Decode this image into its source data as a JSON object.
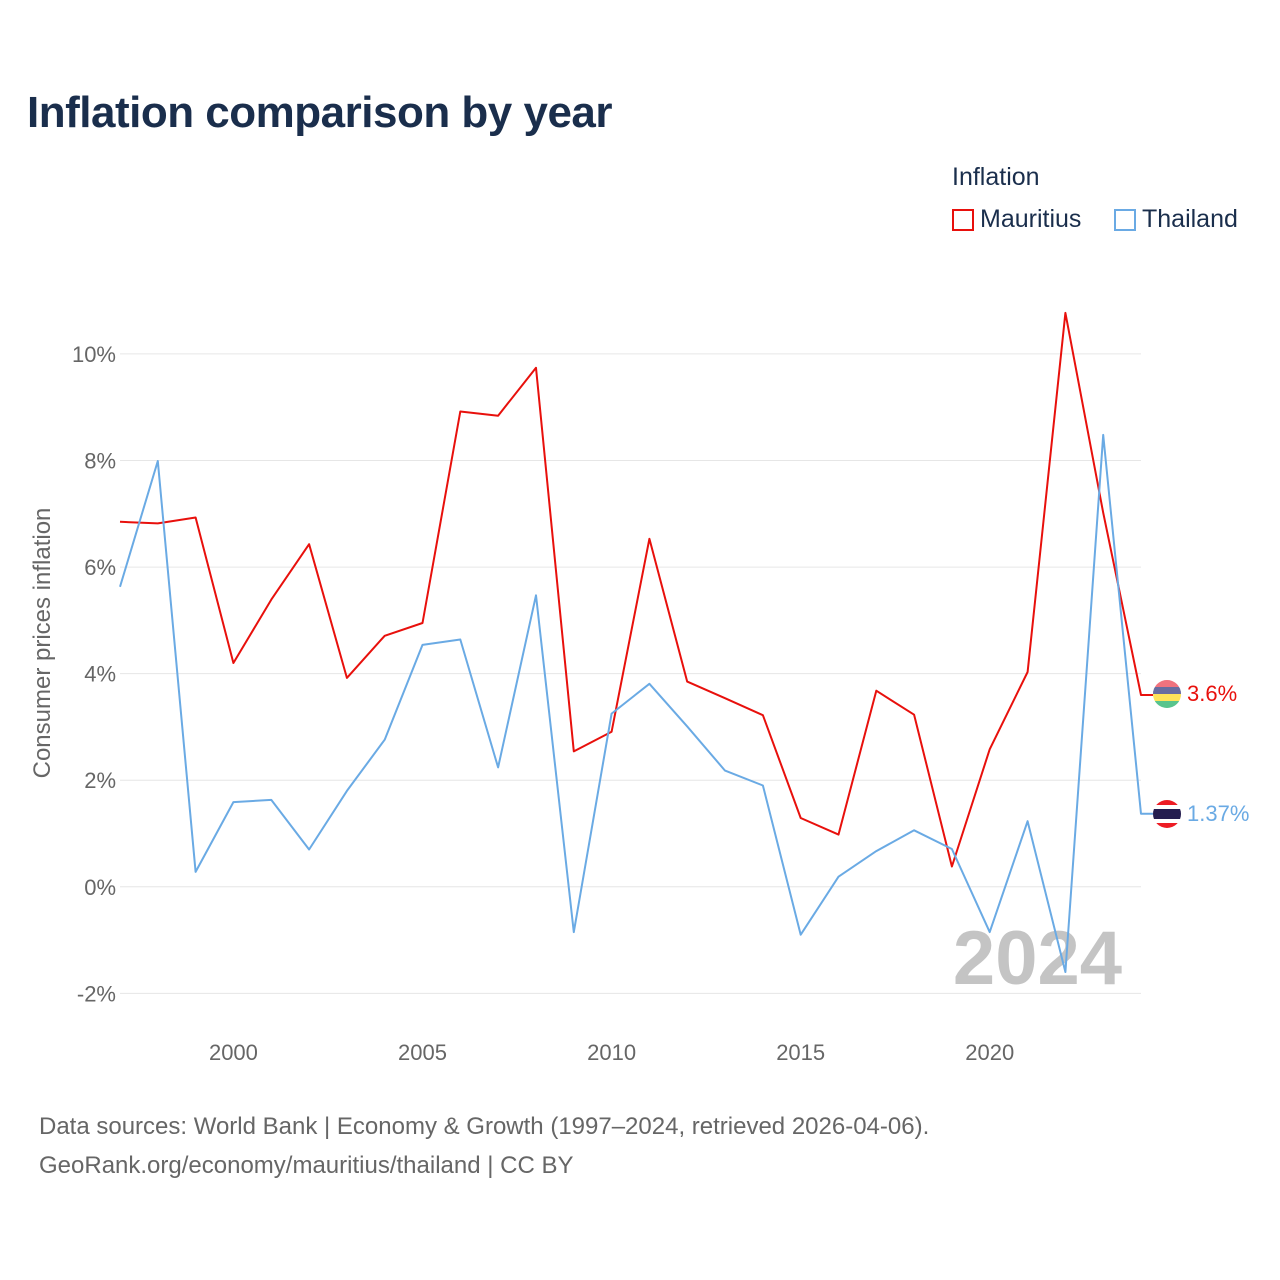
{
  "title": "Inflation comparison by year",
  "legend": {
    "title": "Inflation",
    "items": [
      {
        "label": "Mauritius",
        "color": "#e8100c"
      },
      {
        "label": "Thailand",
        "color": "#6aaae4"
      }
    ]
  },
  "sources": {
    "line1": "Data sources: World Bank | Economy & Growth (1997–2024, retrieved 2026-04-06).",
    "line2": "GeoRank.org/economy/mauritius/thailand | CC BY"
  },
  "chart_data": {
    "type": "line",
    "title": "Inflation comparison by year",
    "xlabel": "",
    "ylabel": "Consumer prices inflation",
    "xlim": [
      1997,
      2024
    ],
    "ylim": [
      -2.5,
      11.5
    ],
    "grid": true,
    "x_ticks": [
      2000,
      2005,
      2010,
      2015,
      2020
    ],
    "x_tick_labels": [
      "2000",
      "2005",
      "2010",
      "2015",
      "2020"
    ],
    "y_ticks": [
      -2,
      0,
      2,
      4,
      6,
      8,
      10
    ],
    "y_tick_labels": [
      "-2%",
      "0%",
      "2%",
      "4%",
      "6%",
      "8%",
      "10%"
    ],
    "watermark": "2024",
    "x": [
      1997,
      1998,
      1999,
      2000,
      2001,
      2002,
      2003,
      2004,
      2005,
      2006,
      2007,
      2008,
      2009,
      2010,
      2011,
      2012,
      2013,
      2014,
      2015,
      2016,
      2017,
      2018,
      2019,
      2020,
      2021,
      2022,
      2023,
      2024
    ],
    "series": [
      {
        "name": "Mauritius",
        "color": "#e8100c",
        "end_label": "3.6%",
        "values": [
          6.85,
          6.82,
          6.93,
          4.2,
          5.39,
          6.43,
          3.92,
          4.71,
          4.95,
          8.92,
          8.84,
          9.74,
          2.54,
          2.91,
          6.53,
          3.85,
          3.54,
          3.22,
          1.29,
          0.98,
          3.68,
          3.23,
          0.38,
          2.58,
          4.03,
          10.77,
          7.02,
          3.6
        ]
      },
      {
        "name": "Thailand",
        "color": "#6aaae4",
        "end_label": "1.37%",
        "values": [
          5.63,
          7.99,
          0.28,
          1.59,
          1.63,
          0.7,
          1.8,
          2.76,
          4.54,
          4.64,
          2.24,
          5.47,
          -0.85,
          3.25,
          3.81,
          3.01,
          2.18,
          1.9,
          -0.9,
          0.19,
          0.67,
          1.06,
          0.71,
          -0.85,
          1.23,
          -1.6,
          8.48,
          1.37
        ]
      }
    ]
  }
}
